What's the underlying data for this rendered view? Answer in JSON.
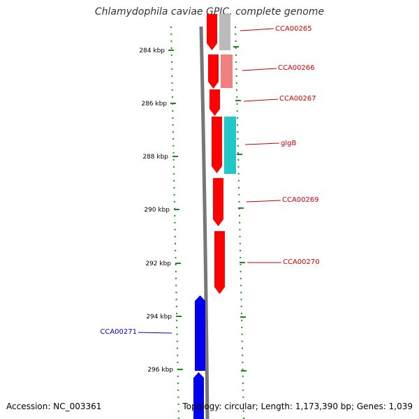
{
  "title": "Chlamydophila caviae GPIC, complete genome",
  "accession_label": "Accession: NC_003361",
  "footer_info": "Topology: circular; Length: 1,173,390 bp; Genes: 1,039",
  "colors": {
    "ruler": "#1a8a1a",
    "backbone": "#777777",
    "forward_gene": "#ff0000",
    "reverse_gene": "#0000ee",
    "pseudo_gene": "#bbbbbb",
    "light_red_gene": "#f08080",
    "cyan_gene": "#20c8c8",
    "label_red": "#cc0000",
    "label_blue": "#0000cc"
  },
  "ruler_ticks": [
    {
      "label": "284 kbp"
    },
    {
      "label": "286 kbp"
    },
    {
      "label": "288 kbp"
    },
    {
      "label": "290 kbp"
    },
    {
      "label": "292 kbp"
    },
    {
      "label": "294 kbp"
    },
    {
      "label": "296 kbp"
    }
  ],
  "gene_labels": [
    {
      "text": "CCA00265",
      "strand": "forward"
    },
    {
      "text": "CCA00266",
      "strand": "forward"
    },
    {
      "text": "CCA00267",
      "strand": "forward"
    },
    {
      "text": "glgB",
      "strand": "forward"
    },
    {
      "text": "CCA00269",
      "strand": "forward"
    },
    {
      "text": "CCA00270",
      "strand": "forward"
    },
    {
      "text": "CCA00271",
      "strand": "reverse"
    }
  ]
}
